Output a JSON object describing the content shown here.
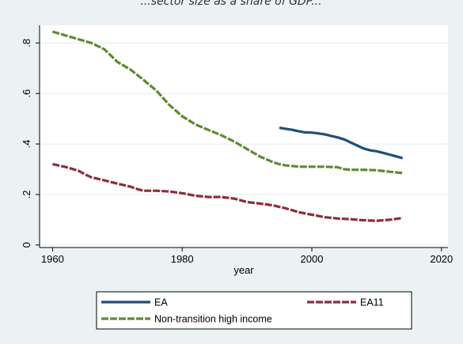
{
  "header": {
    "partial_title": "...sector size as a share of GDP..."
  },
  "chart_data": {
    "type": "line",
    "title": "",
    "xlabel": "year",
    "ylabel": "",
    "xlim": [
      1958,
      2021
    ],
    "ylim": [
      -0.01,
      0.87
    ],
    "x_ticks": [
      1960,
      1980,
      2000,
      2020
    ],
    "x_tick_labels": [
      "1960",
      "1980",
      "2000",
      "2020"
    ],
    "y_ticks": [
      0,
      0.2,
      0.4,
      0.6,
      0.8
    ],
    "y_tick_labels": [
      "0",
      ".2",
      ".4",
      ".6",
      ".8"
    ],
    "grid": "horizontal",
    "legend_position": "bottom",
    "series": [
      {
        "name": "EA",
        "color": "#1f4e79",
        "dash": "solid",
        "x": [
          1995,
          1996,
          1997,
          1998,
          1999,
          2000,
          2001,
          2002,
          2003,
          2004,
          2005,
          2006,
          2007,
          2008,
          2009,
          2010,
          2011,
          2012,
          2013,
          2014
        ],
        "y": [
          0.464,
          0.46,
          0.456,
          0.45,
          0.446,
          0.445,
          0.442,
          0.438,
          0.432,
          0.426,
          0.418,
          0.406,
          0.394,
          0.382,
          0.375,
          0.371,
          0.365,
          0.358,
          0.351,
          0.344
        ]
      },
      {
        "name": "EA11",
        "color": "#8b2d3c",
        "dash": "dashed",
        "x": [
          1960,
          1962,
          1964,
          1965,
          1966,
          1968,
          1970,
          1972,
          1973,
          1974,
          1976,
          1978,
          1980,
          1982,
          1984,
          1986,
          1988,
          1990,
          1992,
          1994,
          1996,
          1998,
          2000,
          2002,
          2004,
          2006,
          2008,
          2010,
          2012,
          2014
        ],
        "y": [
          0.32,
          0.309,
          0.294,
          0.28,
          0.268,
          0.256,
          0.243,
          0.231,
          0.222,
          0.215,
          0.215,
          0.212,
          0.205,
          0.195,
          0.19,
          0.19,
          0.184,
          0.17,
          0.164,
          0.157,
          0.145,
          0.13,
          0.12,
          0.11,
          0.105,
          0.102,
          0.098,
          0.096,
          0.1,
          0.107
        ]
      },
      {
        "name": "Non-transition high income",
        "color": "#5e8a32",
        "dash": "dashed",
        "x": [
          1960,
          1962,
          1964,
          1966,
          1968,
          1970,
          1972,
          1974,
          1976,
          1978,
          1980,
          1982,
          1984,
          1986,
          1988,
          1990,
          1992,
          1994,
          1995,
          1996,
          1998,
          2000,
          2002,
          2004,
          2005,
          2006,
          2008,
          2010,
          2012,
          2014
        ],
        "y": [
          0.845,
          0.83,
          0.815,
          0.8,
          0.775,
          0.725,
          0.695,
          0.655,
          0.612,
          0.555,
          0.51,
          0.478,
          0.456,
          0.435,
          0.41,
          0.38,
          0.35,
          0.328,
          0.32,
          0.315,
          0.31,
          0.31,
          0.31,
          0.308,
          0.3,
          0.298,
          0.298,
          0.296,
          0.29,
          0.285
        ]
      }
    ]
  }
}
